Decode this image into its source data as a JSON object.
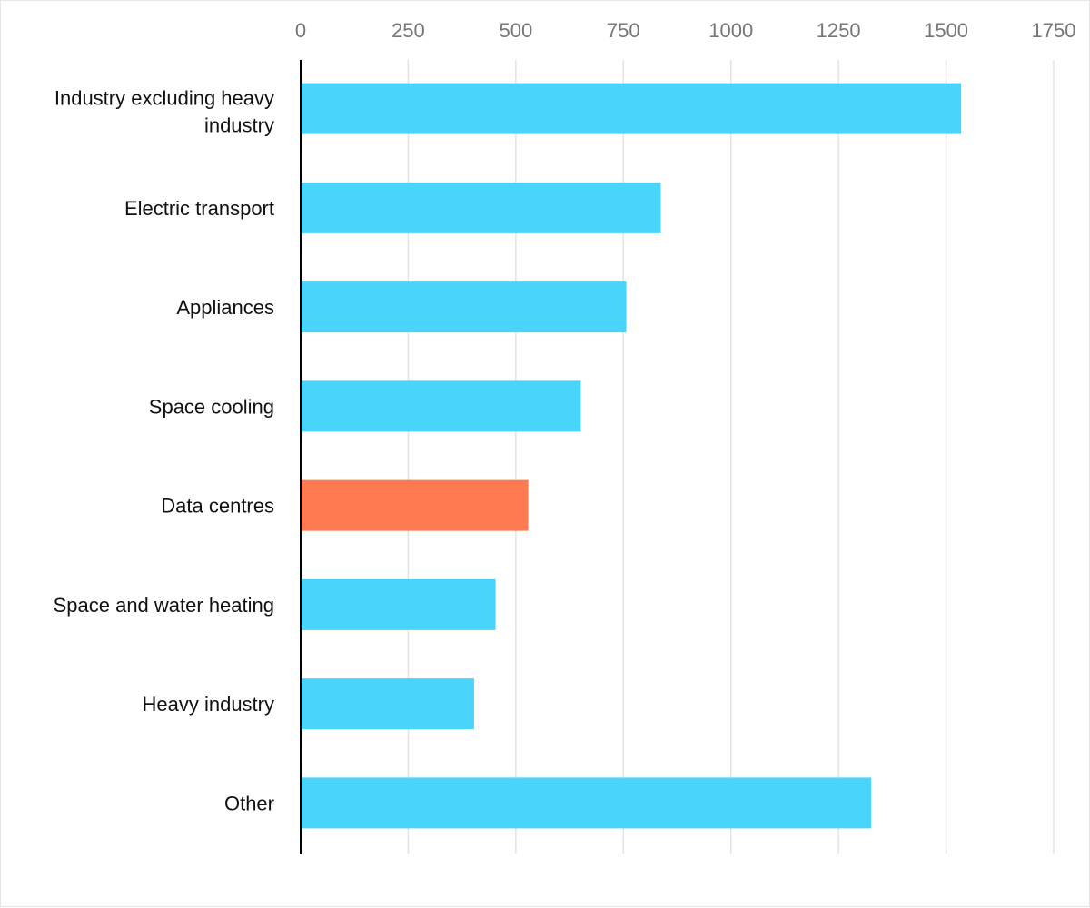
{
  "chart_data": {
    "type": "bar",
    "orientation": "horizontal",
    "categories": [
      "Industry excluding heavy industry",
      "Electric transport",
      "Appliances",
      "Space cooling",
      "Data centres",
      "Space and water heating",
      "Heavy industry",
      "Other"
    ],
    "values": [
      1535,
      837,
      757,
      651,
      529,
      453,
      403,
      1326
    ],
    "xlim": [
      0,
      1750
    ],
    "xticks": [
      "0",
      "250",
      "500",
      "750",
      "1000",
      "1250",
      "1500",
      "1750"
    ],
    "grid": true,
    "title": "",
    "xlabel": "",
    "ylabel": "",
    "colors": {
      "default": "#49D4FC",
      "highlight": "#FF7A50",
      "highlight_category": "Data centres",
      "grid": "#e3e3e3",
      "axis": "#000000"
    }
  }
}
